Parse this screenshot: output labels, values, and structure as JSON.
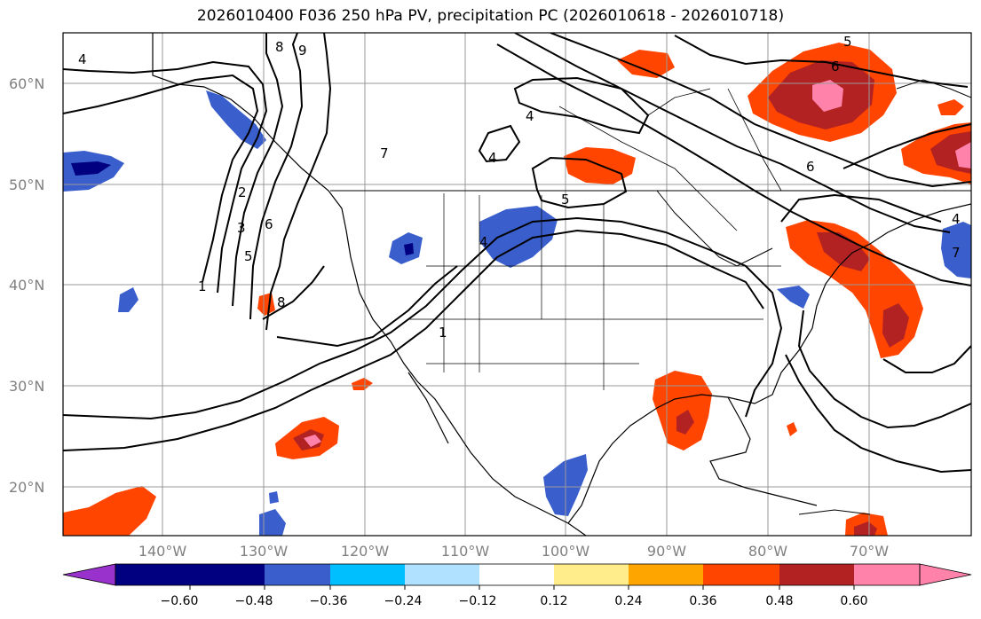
{
  "title": "2026010400 F036 250 hPa PV, precipitation PC (2026010618 - 2026010718)",
  "lat_labels": [
    "60°N",
    "50°N",
    "40°N",
    "30°N",
    "20°N"
  ],
  "lon_labels": [
    "140°W",
    "130°W",
    "120°W",
    "110°W",
    "100°W",
    "90°W",
    "80°W",
    "70°W"
  ],
  "colorbar": {
    "tick_labels": [
      "−0.60",
      "−0.48",
      "−0.36",
      "−0.24",
      "−0.12",
      "0.12",
      "0.24",
      "0.36",
      "0.48",
      "0.60"
    ],
    "colors": [
      "#9932cc",
      "#000080",
      "#3a5fcd",
      "#00bfff",
      "#b0e2ff",
      "#ffffff",
      "#ffec8b",
      "#ffa500",
      "#ff4500",
      "#b22222",
      "#ff82ab"
    ]
  },
  "contour_labels": [
    "4",
    "8",
    "9",
    "4",
    "4",
    "5",
    "2",
    "3",
    "5",
    "6",
    "1",
    "8",
    "7",
    "4",
    "1",
    "6",
    "6",
    "5",
    "7",
    "4"
  ],
  "colors": {
    "blue": "#3a5fcd",
    "navy": "#000080",
    "cyan": "#00bfff",
    "lightblue": "#b0e2ff",
    "yellow": "#ffec8b",
    "orange": "#ffa500",
    "redorange": "#ff4500",
    "darkred": "#b22222",
    "pink": "#ff82ab"
  }
}
